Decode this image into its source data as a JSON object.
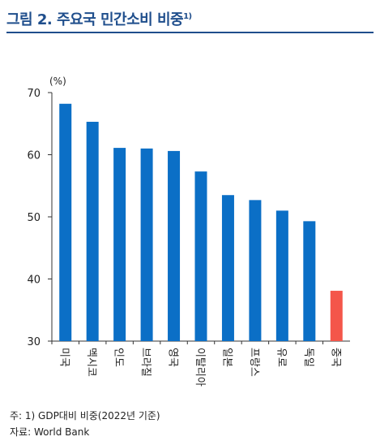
{
  "header": {
    "title": "그림 2. 주요국 민간소비 비중",
    "title_sup": "1)"
  },
  "chart_data": {
    "type": "bar",
    "unit_label": "(%)",
    "categories": [
      "미국",
      "멕시코",
      "인도",
      "브라질",
      "영국",
      "이탈리아",
      "일본",
      "프랑스",
      "유로",
      "독일",
      "중국"
    ],
    "values": [
      68.2,
      65.3,
      61.1,
      61.0,
      60.6,
      57.3,
      53.5,
      52.7,
      51.0,
      49.3,
      38.1
    ],
    "ylim": [
      30,
      70
    ],
    "yticks": [
      30,
      40,
      50,
      60,
      70
    ],
    "colors": {
      "default": "#0b6fc6",
      "highlight": "#f4564a",
      "highlight_category": "중국"
    },
    "grid": false,
    "legend": "none"
  },
  "notes": {
    "note": "주: 1) GDP대비 비중(2022년 기준)",
    "source": "자료: World Bank"
  }
}
